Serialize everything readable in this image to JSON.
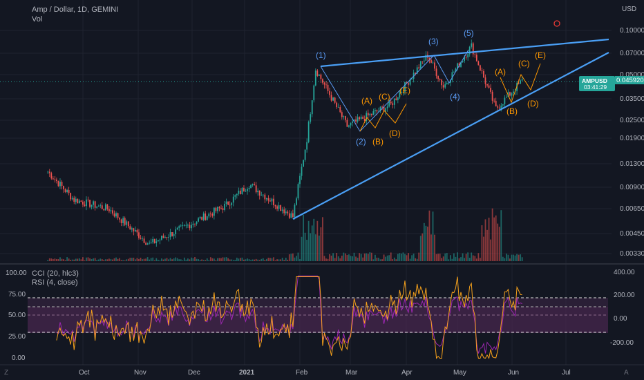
{
  "header": {
    "symbol_line": "Amp / Dollar, 1D, GEMINI",
    "vol_label": "Vol"
  },
  "price_axis": {
    "currency": "USD",
    "ticks": [
      "0.100000",
      "0.070000",
      "0.050000",
      "0.035000",
      "0.025000",
      "0.019000",
      "0.013000",
      "0.009000",
      "0.006500",
      "0.004500",
      "0.003300"
    ]
  },
  "price_tag": {
    "symbol": "AMPUSD",
    "price": "0.045920",
    "countdown": "03:41:29",
    "color": "#26a69a"
  },
  "time_axis": {
    "labels": [
      "Oct",
      "Nov",
      "Dec",
      "2021",
      "Feb",
      "Mar",
      "Apr",
      "May",
      "Jun",
      "Jul"
    ]
  },
  "indicators": {
    "cci_label": "CCI (20, hlc3)",
    "rsi_label": "RSI (4, close)",
    "left_ticks": [
      "100.00",
      "75.00",
      "50.00",
      "25.00",
      "0.00"
    ],
    "right_ticks": [
      "400.00",
      "200.00",
      "0.00",
      "-200.00"
    ],
    "cci_color": "#9c27b0",
    "rsi_color": "#f7a21b"
  },
  "waves": {
    "impulse": [
      "(1)",
      "(2)",
      "(3)",
      "(4)",
      "(5)"
    ],
    "corrective_1": [
      "(A)",
      "(B)",
      "(C)",
      "(D)",
      "(E)"
    ],
    "corrective_2": [
      "(A)",
      "(B)",
      "(C)",
      "(D)",
      "(E)"
    ],
    "impulse_color": "#5b9cf6",
    "corrective_color": "#ff9800"
  },
  "colors": {
    "up": "#26a69a",
    "down": "#ef5350",
    "trendline": "#4a9ff5",
    "background": "#131722"
  },
  "icons": {
    "compare": "circle-icon",
    "timezone": "Z-icon",
    "auto": "A-icon"
  },
  "corner_labels": {
    "left": "Z",
    "right": "A"
  },
  "chart_data": {
    "type": "candlestick",
    "title": "Amp / Dollar, 1D, GEMINI",
    "x_range": [
      "2020-09-01",
      "2021-07-25"
    ],
    "y_scale": "log",
    "y_range": [
      0.003,
      0.13
    ],
    "approx_close_path": [
      {
        "date": "2020-09-10",
        "value": 0.0115
      },
      {
        "date": "2020-09-25",
        "value": 0.0075
      },
      {
        "date": "2020-10-15",
        "value": 0.0065
      },
      {
        "date": "2020-11-07",
        "value": 0.0038
      },
      {
        "date": "2020-11-25",
        "value": 0.0048
      },
      {
        "date": "2020-12-20",
        "value": 0.0068
      },
      {
        "date": "2021-01-03",
        "value": 0.0095
      },
      {
        "date": "2021-01-28",
        "value": 0.0058
      },
      {
        "date": "2021-02-05",
        "value": 0.019
      },
      {
        "date": "2021-02-10",
        "value": 0.055
      },
      {
        "date": "2021-02-28",
        "value": 0.023
      },
      {
        "date": "2021-03-25",
        "value": 0.032
      },
      {
        "date": "2021-04-15",
        "value": 0.068
      },
      {
        "date": "2021-04-24",
        "value": 0.042
      },
      {
        "date": "2021-05-10",
        "value": 0.078
      },
      {
        "date": "2021-05-24",
        "value": 0.03
      },
      {
        "date": "2021-06-08",
        "value": 0.0459
      }
    ],
    "trendlines": [
      {
        "from": {
          "date": "2021-02-10",
          "value": 0.056
        },
        "to": {
          "date": "2021-07-25",
          "value": 0.088
        }
      },
      {
        "from": {
          "date": "2021-01-28",
          "value": 0.0058
        },
        "to": {
          "date": "2021-07-25",
          "value": 0.073
        }
      }
    ],
    "indicators": [
      "CCI (20, hlc3)",
      "RSI (4, close)"
    ],
    "rsi_levels": [
      70,
      30
    ],
    "cci_levels": [
      200,
      100,
      0,
      -100
    ]
  }
}
